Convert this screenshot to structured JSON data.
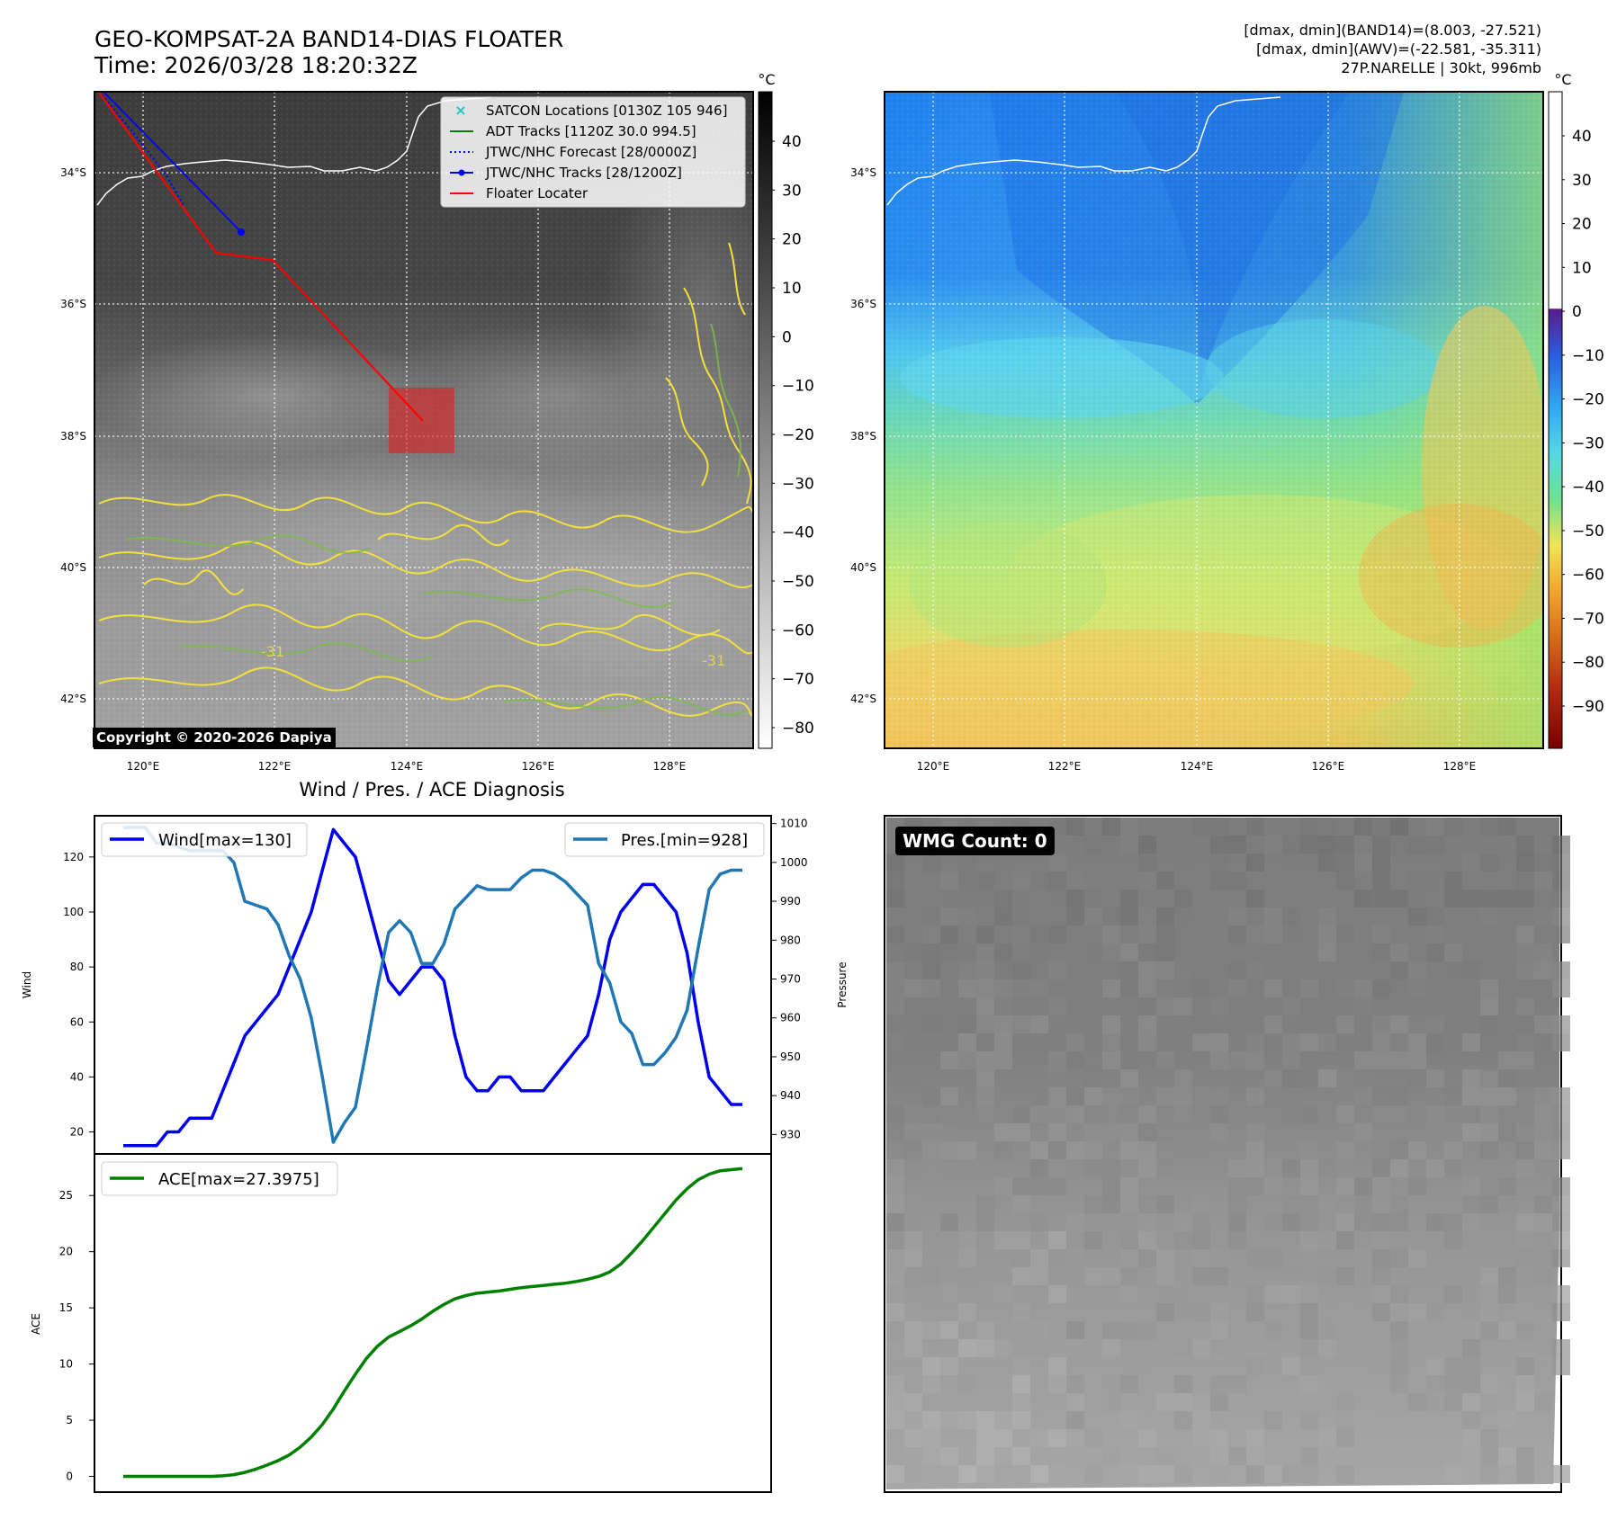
{
  "header": {
    "title_line1": "GEO-KOMPSAT-2A BAND14-DIAS FLOATER",
    "title_line2": "Time: 2026/03/28 18:20:32Z",
    "info_line1": "[dmax, dmin](BAND14)=(8.003, -27.521)",
    "info_line2": "[dmax, dmin](AWV)=(-22.581, -35.311)",
    "info_line3": "27P.NARELLE | 30kt, 996mb"
  },
  "ir_panel": {
    "lat_labels": [
      "34°S",
      "36°S",
      "38°S",
      "40°S",
      "42°S"
    ],
    "lon_labels": [
      "120°E",
      "122°E",
      "124°E",
      "126°E",
      "128°E"
    ],
    "colorbar_unit": "°C",
    "colorbar_ticks": [
      "40",
      "30",
      "20",
      "10",
      "0",
      "−10",
      "−20",
      "−30",
      "−40",
      "−50",
      "−60",
      "−70",
      "−80"
    ],
    "copyright": "Copyright © 2020-2026 Dapiya",
    "contour_label": "-31",
    "legend": [
      {
        "label": "SATCON Locations [0130Z 105 946]",
        "color": "#19c3c3",
        "style": "x"
      },
      {
        "label": "ADT Tracks [1120Z 30.0 994.5]",
        "color": "#008000",
        "style": "solid"
      },
      {
        "label": "JTWC/NHC Forecast [28/0000Z]",
        "color": "#0000ff",
        "style": "dotted"
      },
      {
        "label": "JTWC/NHC Tracks [28/1200Z]",
        "color": "#0000ff",
        "style": "dot-line"
      },
      {
        "label": "Floater Locater",
        "color": "#ff0000",
        "style": "solid"
      }
    ]
  },
  "wv_panel": {
    "lat_labels": [
      "34°S",
      "36°S",
      "38°S",
      "40°S",
      "42°S"
    ],
    "lon_labels": [
      "120°E",
      "122°E",
      "124°E",
      "126°E",
      "128°E"
    ],
    "colorbar_unit": "°C",
    "colorbar_ticks": [
      "40",
      "30",
      "20",
      "10",
      "0",
      "−10",
      "−20",
      "−30",
      "−40",
      "−50",
      "−60",
      "−70",
      "−80",
      "−90"
    ]
  },
  "wmg_panel": {
    "badge": "WMG Count: 0"
  },
  "chart_data": [
    {
      "type": "line",
      "title": "Wind / Pres. / ACE Diagnosis",
      "ylabel": "Wind",
      "y2label": "Pressure",
      "ylim": [
        12,
        135
      ],
      "y2lim": [
        925,
        1012
      ],
      "yticks": [
        "20",
        "40",
        "60",
        "80",
        "100",
        "120"
      ],
      "y2ticks": [
        "930",
        "940",
        "950",
        "960",
        "970",
        "980",
        "990",
        "1000",
        "1010"
      ],
      "series": [
        {
          "name": "Wind[max=130]",
          "color": "#0000ee",
          "values": [
            15,
            15,
            15,
            15,
            20,
            20,
            25,
            25,
            25,
            35,
            45,
            55,
            60,
            65,
            70,
            80,
            90,
            100,
            115,
            130,
            125,
            120,
            105,
            90,
            75,
            70,
            75,
            80,
            80,
            75,
            55,
            40,
            35,
            35,
            40,
            40,
            35,
            35,
            35,
            40,
            45,
            50,
            55,
            70,
            90,
            100,
            105,
            110,
            110,
            105,
            100,
            85,
            60,
            40,
            35,
            30,
            30
          ]
        },
        {
          "name": "Pres.[min=928]",
          "color": "#1f77b4",
          "values": [
            1009,
            1009,
            1009,
            1005,
            1005,
            1004,
            1003,
            1003,
            1003,
            1003,
            1000,
            990,
            989,
            988,
            984,
            976,
            970,
            960,
            945,
            928,
            933,
            937,
            952,
            968,
            982,
            985,
            982,
            974,
            974,
            979,
            988,
            991,
            994,
            993,
            993,
            993,
            996,
            998,
            998,
            997,
            995,
            992,
            989,
            974,
            969,
            959,
            956,
            948,
            948,
            951,
            955,
            962,
            978,
            993,
            997,
            998,
            998
          ]
        }
      ]
    },
    {
      "type": "line",
      "ylabel": "ACE",
      "ylim": [
        -1.4,
        28.7
      ],
      "yticks": [
        "0",
        "5",
        "10",
        "15",
        "20",
        "25"
      ],
      "series": [
        {
          "name": "ACE[max=27.3975]",
          "color": "#008000",
          "values": [
            0,
            0,
            0,
            0,
            0,
            0,
            0,
            0,
            0,
            0.05,
            0.15,
            0.35,
            0.65,
            1.0,
            1.4,
            1.9,
            2.6,
            3.5,
            4.6,
            6.0,
            7.6,
            9.1,
            10.5,
            11.6,
            12.4,
            12.9,
            13.4,
            14.0,
            14.7,
            15.3,
            15.8,
            16.1,
            16.3,
            16.4,
            16.5,
            16.65,
            16.8,
            16.9,
            17.0,
            17.1,
            17.2,
            17.35,
            17.55,
            17.8,
            18.2,
            18.9,
            19.9,
            21.0,
            22.2,
            23.4,
            24.6,
            25.6,
            26.4,
            26.9,
            27.2,
            27.3,
            27.4
          ]
        }
      ]
    }
  ]
}
